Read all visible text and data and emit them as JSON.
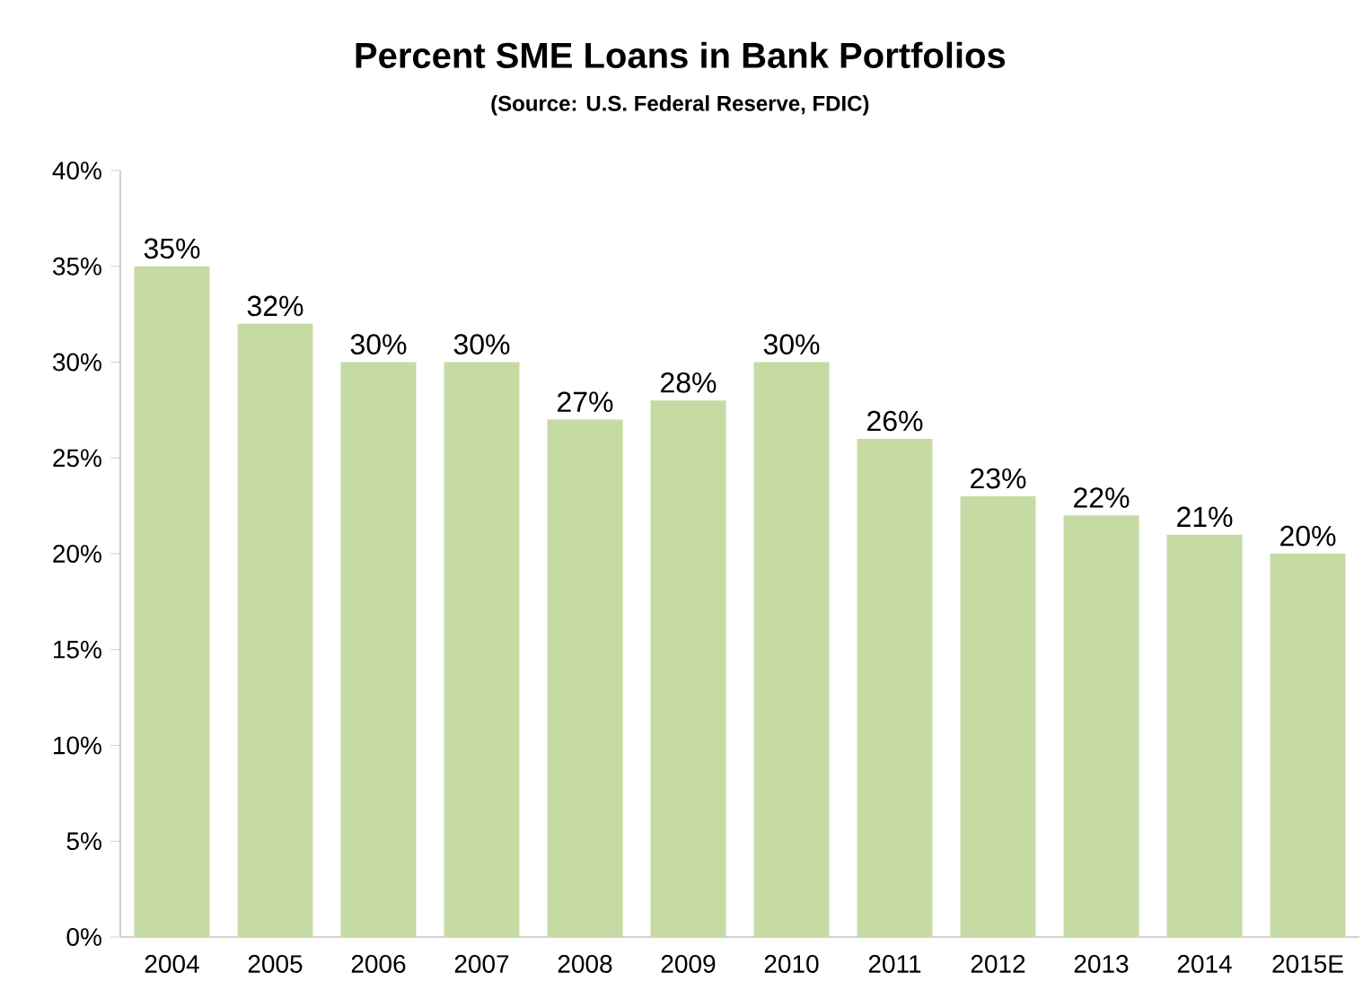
{
  "chart_data": {
    "type": "bar",
    "title": "Percent SME Loans in Bank Portfolios",
    "subtitle": "(Source: U.S. Federal Reserve, FDIC)",
    "categories": [
      "2004",
      "2005",
      "2006",
      "2007",
      "2008",
      "2009",
      "2010",
      "2011",
      "2012",
      "2013",
      "2014",
      "2015E"
    ],
    "values": [
      35,
      32,
      30,
      30,
      27,
      28,
      30,
      26,
      23,
      22,
      21,
      20
    ],
    "value_labels": [
      "35%",
      "32%",
      "30%",
      "30%",
      "27%",
      "28%",
      "30%",
      "26%",
      "23%",
      "22%",
      "21%",
      "20%"
    ],
    "color": "#c6dba3",
    "ylim": [
      0,
      40
    ],
    "yticks": [
      {
        "value": 0,
        "label": "0%"
      },
      {
        "value": 5,
        "label": "5%"
      },
      {
        "value": 10,
        "label": "10%"
      },
      {
        "value": 15,
        "label": "15%"
      },
      {
        "value": 20,
        "label": "20%"
      },
      {
        "value": 25,
        "label": "25%"
      },
      {
        "value": 30,
        "label": "30%"
      },
      {
        "value": 35,
        "label": "35%"
      },
      {
        "value": 40,
        "label": "40%"
      }
    ]
  }
}
